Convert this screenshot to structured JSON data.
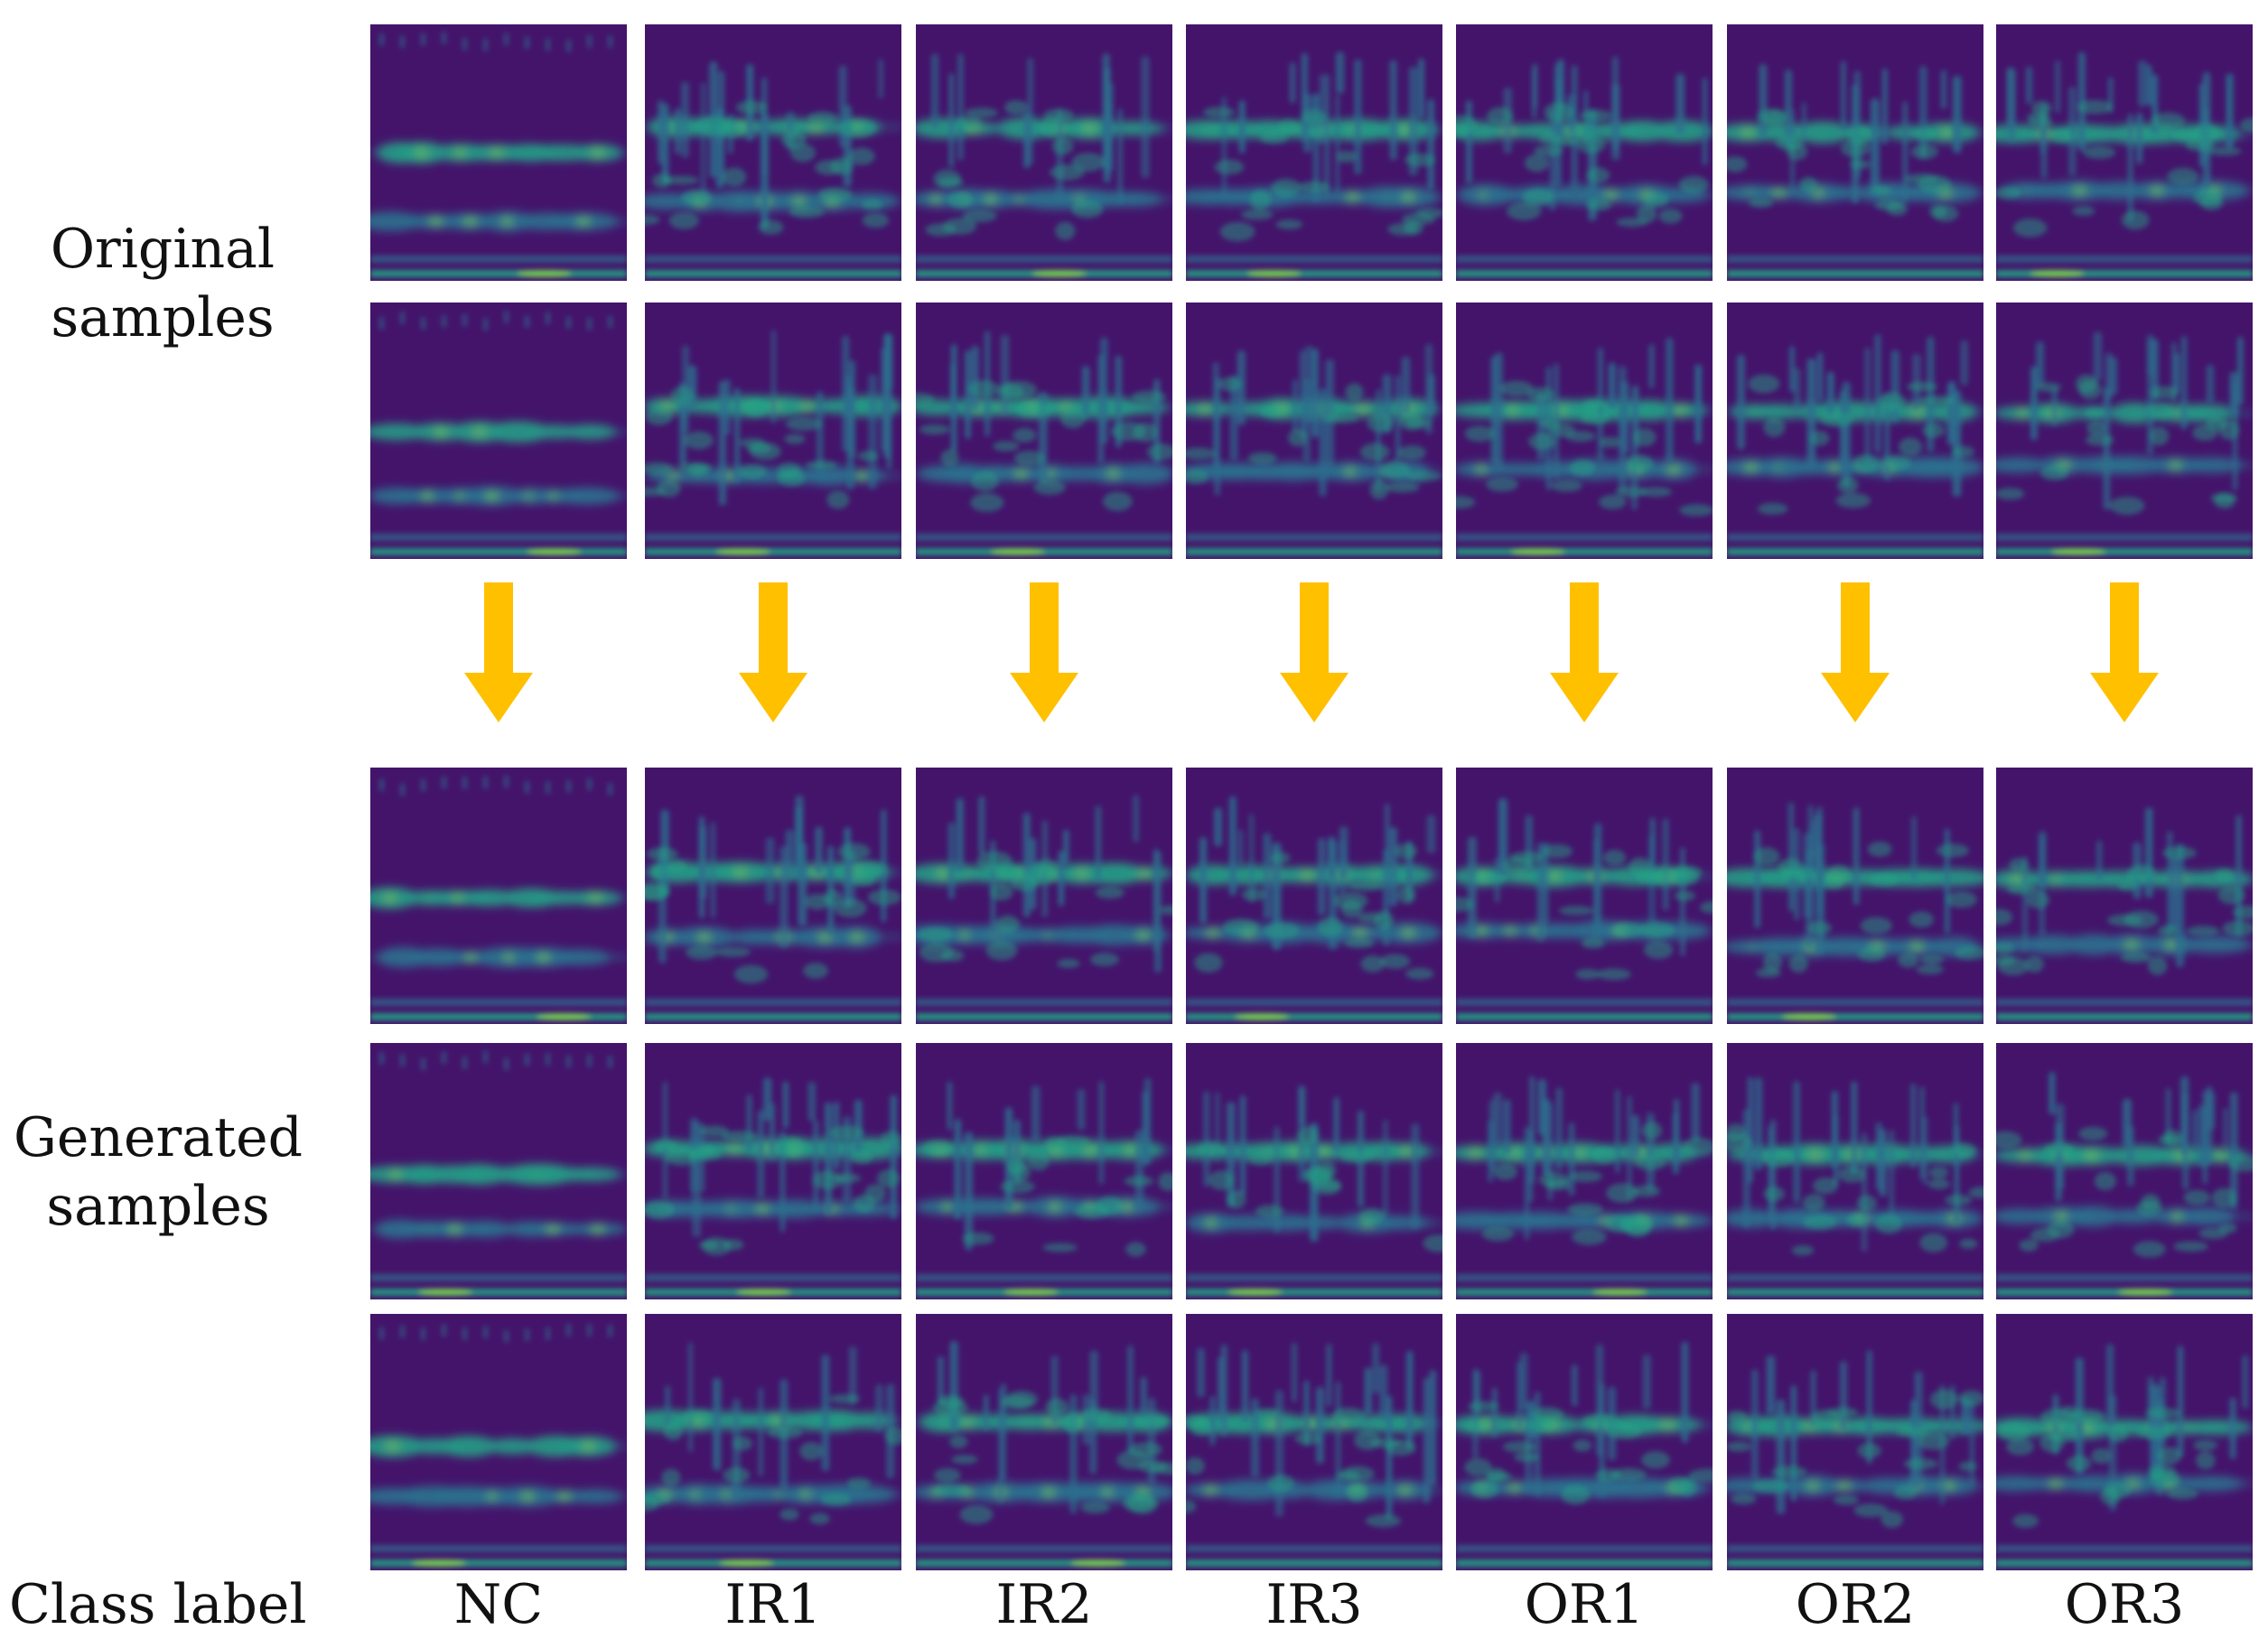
{
  "labels": {
    "original": [
      "Original",
      "samples"
    ],
    "generated": [
      "Generated",
      "samples"
    ],
    "class_label_title": "Class label"
  },
  "classes": [
    "NC",
    "IR1",
    "IR2",
    "IR3",
    "OR1",
    "OR2",
    "OR3"
  ],
  "rows": {
    "original": 2,
    "generated": 3
  },
  "colors": {
    "background": "#ffffff",
    "spectrogram_bg": "#44146b",
    "band_mid": "#2c6f8e",
    "band_bright": "#22a884",
    "band_peak": "#7ad151",
    "arrow": "#ffc000"
  }
}
